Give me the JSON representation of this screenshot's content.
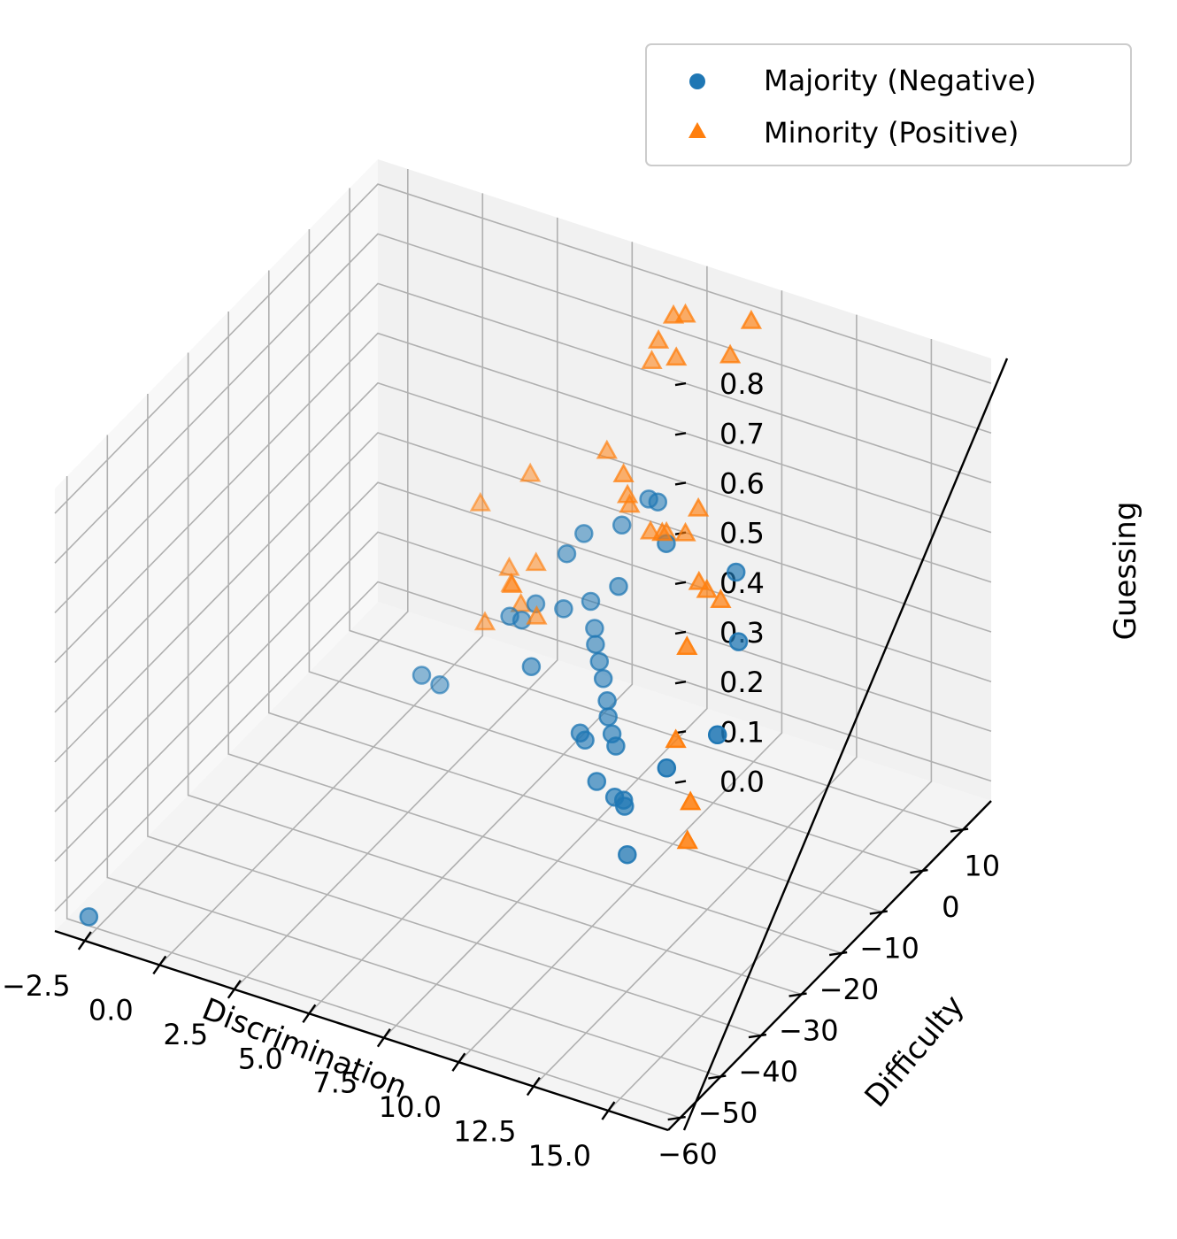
{
  "chart_data": {
    "type": "scatter",
    "projection": "3d",
    "grid": true,
    "legend_position": "top-right",
    "xlabel": "Discrimination",
    "ylabel": "Difficulty",
    "zlabel": "Guessing",
    "x_ticks": [
      "−2.5",
      "0.0",
      "2.5",
      "5.0",
      "7.5",
      "10.0",
      "12.5",
      "15.0"
    ],
    "y_ticks": [
      "−60",
      "−50",
      "−40",
      "−30",
      "−20",
      "−10",
      "0",
      "10"
    ],
    "z_ticks": [
      "0.0",
      "0.1",
      "0.2",
      "0.3",
      "0.4",
      "0.5",
      "0.6",
      "0.7",
      "0.8"
    ],
    "xlim": [
      -3.5,
      17
    ],
    "ylim": [
      -63,
      17
    ],
    "zlim": [
      -0.04,
      0.85
    ],
    "series": [
      {
        "name": "Majority (Negative)",
        "marker": "circle",
        "color": "#1f77b4",
        "points": [
          [
            -2.5,
            -62,
            0.0
          ],
          [
            1.0,
            -1,
            0.03
          ],
          [
            0.8,
            -4,
            0.07
          ],
          [
            2.8,
            3,
            0.17
          ],
          [
            3.2,
            3,
            0.17
          ],
          [
            3.4,
            5,
            0.19
          ],
          [
            4.6,
            -5,
            0.17
          ],
          [
            4.6,
            3,
            0.22
          ],
          [
            4.3,
            6,
            0.3
          ],
          [
            4.6,
            8,
            0.33
          ],
          [
            5.6,
            10,
            0.35
          ],
          [
            6.5,
            10,
            0.42
          ],
          [
            6.8,
            10,
            0.42
          ],
          [
            5.1,
            6,
            0.22
          ],
          [
            5.5,
            4,
            0.19
          ],
          [
            5.8,
            2,
            0.18
          ],
          [
            6.2,
            0,
            0.17
          ],
          [
            6.6,
            -2,
            0.16
          ],
          [
            7.0,
            -4,
            0.14
          ],
          [
            7.3,
            -6,
            0.13
          ],
          [
            7.7,
            -8,
            0.12
          ],
          [
            8.1,
            -10,
            0.12
          ],
          [
            6.5,
            -7,
            0.09
          ],
          [
            6.8,
            -8,
            0.09
          ],
          [
            8.0,
            -14,
            0.08
          ],
          [
            8.6,
            -14,
            0.06
          ],
          [
            8.9,
            -14,
            0.06
          ],
          [
            9.2,
            -16,
            0.07
          ],
          [
            10.1,
            -22,
            0.04
          ],
          [
            6.3,
            4,
            0.29
          ],
          [
            8.3,
            1,
            0.44
          ],
          [
            10.9,
            -1,
            0.45
          ],
          [
            12.2,
            -10,
            0.41
          ],
          [
            12.9,
            -33,
            0.36
          ],
          [
            14.6,
            -33,
            0.46
          ]
        ]
      },
      {
        "name": "Minority (Positive)",
        "marker": "triangle",
        "color": "#ff7f0e",
        "points": [
          [
            0.6,
            12,
            0.28
          ],
          [
            1.9,
            10,
            0.16
          ],
          [
            2.2,
            8,
            0.18
          ],
          [
            1.7,
            11,
            0.18
          ],
          [
            1.7,
            5,
            0.12
          ],
          [
            2.9,
            5,
            0.18
          ],
          [
            2.0,
            14,
            0.35
          ],
          [
            3.0,
            8,
            0.24
          ],
          [
            4.1,
            0,
            0.22
          ],
          [
            5.1,
            10,
            0.49
          ],
          [
            6.4,
            6,
            0.44
          ],
          [
            6.6,
            4,
            0.48
          ],
          [
            6.6,
            3,
            0.53
          ],
          [
            7.1,
            6,
            0.4
          ],
          [
            7.9,
            4,
            0.43
          ],
          [
            8.4,
            5,
            0.43
          ],
          [
            8.3,
            0,
            0.47
          ],
          [
            9.1,
            3,
            0.51
          ],
          [
            6.6,
            10,
            0.7
          ],
          [
            7.5,
            5,
            0.8
          ],
          [
            8.0,
            5,
            0.86
          ],
          [
            8.4,
            5,
            0.87
          ],
          [
            8.5,
            2,
            0.81
          ],
          [
            10.3,
            2,
            0.85
          ],
          [
            10.6,
            5,
            0.9
          ],
          [
            10.2,
            -5,
            0.45
          ],
          [
            10.6,
            -6,
            0.45
          ],
          [
            11.2,
            -7,
            0.45
          ],
          [
            12.5,
            -25,
            0.53
          ],
          [
            12.8,
            -30,
            0.39
          ],
          [
            14.1,
            -36,
            0.34
          ],
          [
            14.0,
            -36,
            0.26
          ]
        ]
      }
    ]
  },
  "legend": {
    "items": [
      {
        "label": "Majority (Negative)",
        "marker": "circle",
        "color": "#1f77b4"
      },
      {
        "label": "Minority (Positive)",
        "marker": "triangle",
        "color": "#ff7f0e"
      }
    ]
  }
}
